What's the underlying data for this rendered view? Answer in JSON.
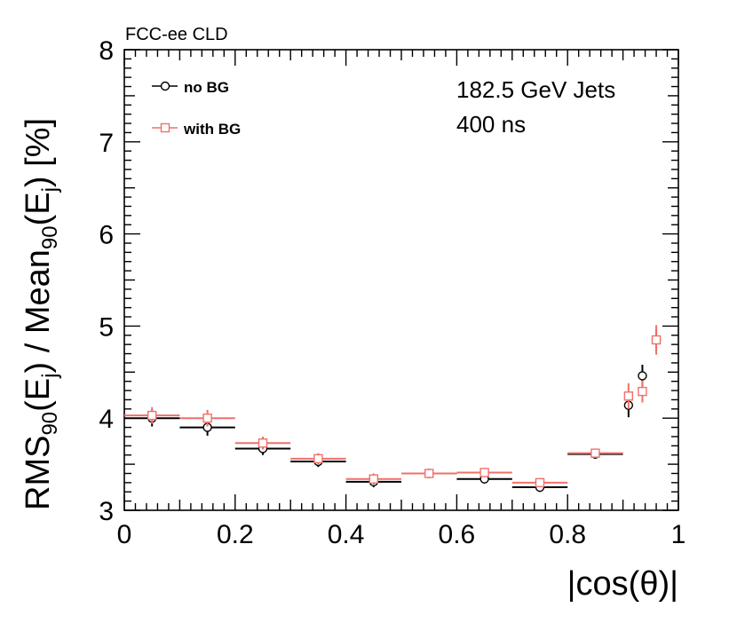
{
  "chart_data": {
    "type": "scatter",
    "experiment_label": "FCC-ee CLD",
    "annotation_lines": [
      "182.5 GeV Jets",
      "400 ns"
    ],
    "xlabel": "|cos(θ)|",
    "ylabel": {
      "p1": "RMS",
      "s1": "90",
      "p2": "(E",
      "s2": "j",
      "p3": ") / Mean",
      "s3": "90",
      "p4": "(E",
      "s4": "j",
      "p5": ") [%]"
    },
    "xlim": [
      0,
      1
    ],
    "ylim": [
      3,
      8
    ],
    "x_ticks": [
      {
        "v": 0,
        "label": "0"
      },
      {
        "v": 0.2,
        "label": "0.2"
      },
      {
        "v": 0.4,
        "label": "0.4"
      },
      {
        "v": 0.6,
        "label": "0.6"
      },
      {
        "v": 0.8,
        "label": "0.8"
      },
      {
        "v": 1,
        "label": "1"
      }
    ],
    "y_ticks": [
      {
        "v": 3,
        "label": "3"
      },
      {
        "v": 4,
        "label": "4"
      },
      {
        "v": 5,
        "label": "5"
      },
      {
        "v": 6,
        "label": "6"
      },
      {
        "v": 7,
        "label": "7"
      },
      {
        "v": 8,
        "label": "8"
      }
    ],
    "series": [
      {
        "name": "no BG",
        "color": "#000000",
        "marker": "circle",
        "points": [
          {
            "x": 0.05,
            "y": 4.0,
            "xerr": 0.05,
            "yerr": 0.09
          },
          {
            "x": 0.15,
            "y": 3.9,
            "xerr": 0.05,
            "yerr": 0.09
          },
          {
            "x": 0.25,
            "y": 3.67,
            "xerr": 0.05,
            "yerr": 0.07
          },
          {
            "x": 0.35,
            "y": 3.53,
            "xerr": 0.05,
            "yerr": 0.06
          },
          {
            "x": 0.45,
            "y": 3.31,
            "xerr": 0.05,
            "yerr": 0.06
          },
          {
            "x": 0.55,
            "y": 3.4,
            "xerr": 0.05,
            "yerr": 0.05
          },
          {
            "x": 0.65,
            "y": 3.34,
            "xerr": 0.05,
            "yerr": 0.05
          },
          {
            "x": 0.75,
            "y": 3.25,
            "xerr": 0.05,
            "yerr": 0.05
          },
          {
            "x": 0.85,
            "y": 3.61,
            "xerr": 0.05,
            "yerr": 0.05
          },
          {
            "x": 0.91,
            "y": 4.14,
            "xerr": 0.005,
            "yerr": 0.13
          },
          {
            "x": 0.935,
            "y": 4.46,
            "xerr": 0.005,
            "yerr": 0.12
          },
          {
            "x": 0.96,
            "y": 4.85,
            "xerr": 0.005,
            "yerr": 0.12
          }
        ]
      },
      {
        "name": "with BG",
        "color": "#f0706a",
        "marker": "square",
        "points": [
          {
            "x": 0.05,
            "y": 4.03,
            "xerr": 0.05,
            "yerr": 0.09
          },
          {
            "x": 0.15,
            "y": 4.0,
            "xerr": 0.05,
            "yerr": 0.09
          },
          {
            "x": 0.25,
            "y": 3.73,
            "xerr": 0.05,
            "yerr": 0.07
          },
          {
            "x": 0.35,
            "y": 3.56,
            "xerr": 0.05,
            "yerr": 0.06
          },
          {
            "x": 0.45,
            "y": 3.34,
            "xerr": 0.05,
            "yerr": 0.06
          },
          {
            "x": 0.55,
            "y": 3.4,
            "xerr": 0.05,
            "yerr": 0.05
          },
          {
            "x": 0.65,
            "y": 3.41,
            "xerr": 0.05,
            "yerr": 0.05
          },
          {
            "x": 0.75,
            "y": 3.3,
            "xerr": 0.05,
            "yerr": 0.05
          },
          {
            "x": 0.85,
            "y": 3.62,
            "xerr": 0.05,
            "yerr": 0.05
          },
          {
            "x": 0.91,
            "y": 4.24,
            "xerr": 0.005,
            "yerr": 0.14
          },
          {
            "x": 0.935,
            "y": 4.29,
            "xerr": 0.005,
            "yerr": 0.12
          },
          {
            "x": 0.96,
            "y": 4.85,
            "xerr": 0.005,
            "yerr": 0.16
          }
        ]
      }
    ]
  }
}
